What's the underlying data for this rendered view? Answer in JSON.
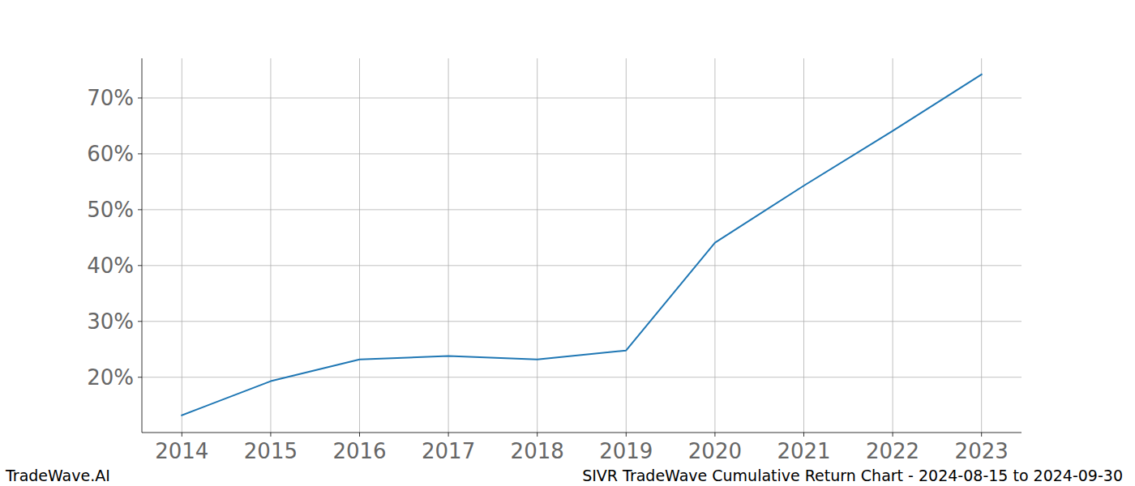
{
  "chart_data": {
    "type": "line",
    "title": "SIVR TradeWave Cumulative Return Chart - 2024-08-15 to 2024-09-30",
    "annotations": [
      "TradeWave.AI"
    ],
    "x": [
      2014,
      2015,
      2016,
      2017,
      2018,
      2019,
      2020,
      2021,
      2022,
      2023
    ],
    "series": [
      {
        "name": "SIVR",
        "color": "#1f77b4",
        "values": [
          13.2,
          19.3,
          23.2,
          23.8,
          23.2,
          24.8,
          44.1,
          54.3,
          64.1,
          74.2
        ]
      }
    ],
    "xlim": [
      2013.55,
      2023.45
    ],
    "xticks": [
      2014,
      2015,
      2016,
      2017,
      2018,
      2019,
      2020,
      2021,
      2022,
      2023
    ],
    "ylim": [
      10.1,
      77.1
    ],
    "yticks": [
      {
        "value": 20,
        "label": "20%"
      },
      {
        "value": 30,
        "label": "30%"
      },
      {
        "value": 40,
        "label": "40%"
      },
      {
        "value": 50,
        "label": "50%"
      },
      {
        "value": 60,
        "label": "60%"
      },
      {
        "value": 70,
        "label": "70%"
      }
    ],
    "grid": true
  }
}
